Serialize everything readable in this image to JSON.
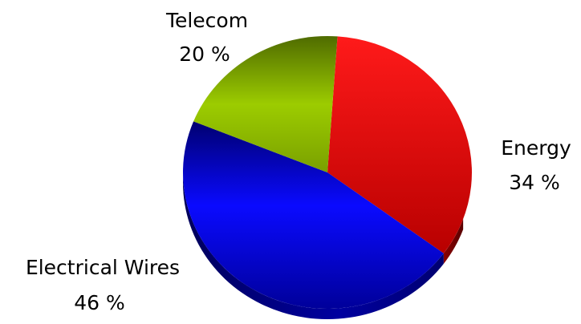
{
  "chart_data": {
    "type": "pie",
    "slices": [
      {
        "name": "Energy",
        "value": 34,
        "value_label": "34 %",
        "color": "#ee0000"
      },
      {
        "name": "Electrical Wires",
        "value": 46,
        "value_label": "46 %",
        "color": "#0000ee"
      },
      {
        "name": "Telecom",
        "value": 20,
        "value_label": "20 %",
        "color": "#8fc400"
      }
    ],
    "title": "",
    "legend": "none",
    "style": "3d"
  }
}
